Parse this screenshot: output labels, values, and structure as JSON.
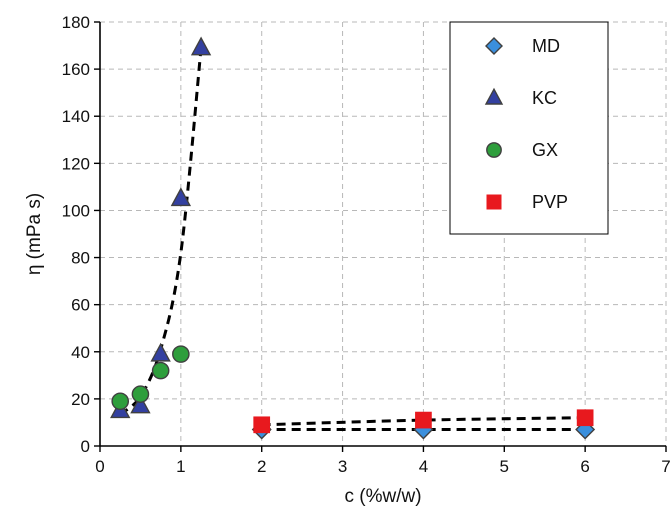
{
  "chart_data": {
    "type": "scatter",
    "title": "",
    "xlabel": "c (%w/w)",
    "ylabel": "η (mPa s)",
    "xlim": [
      0,
      7
    ],
    "ylim": [
      0,
      180
    ],
    "xticks": [
      0,
      1,
      2,
      3,
      4,
      5,
      6,
      7
    ],
    "yticks": [
      0,
      20,
      40,
      60,
      80,
      100,
      120,
      140,
      160,
      180
    ],
    "grid": true,
    "legend_position": "top-right",
    "series": [
      {
        "name": "MD",
        "marker": "diamond",
        "color": "#3a8fdd",
        "x": [
          2,
          4,
          6
        ],
        "y": [
          7,
          7,
          7
        ],
        "trend": "dashed line"
      },
      {
        "name": "KC",
        "marker": "triangle",
        "color": "#3340a0",
        "x": [
          0.25,
          0.5,
          0.75,
          1.0,
          1.25
        ],
        "y": [
          15,
          17,
          39,
          105,
          169
        ],
        "trend": "dashed curve"
      },
      {
        "name": "GX",
        "marker": "circle",
        "color": "#2e9e3c",
        "x": [
          0.25,
          0.5,
          0.75,
          1.0
        ],
        "y": [
          19,
          22,
          32,
          39
        ],
        "trend": "none"
      },
      {
        "name": "PVP",
        "marker": "square",
        "color": "#e8191e",
        "x": [
          2,
          4,
          6
        ],
        "y": [
          9,
          11,
          12
        ],
        "trend": "dashed line"
      }
    ],
    "fits": [
      {
        "name": "KC",
        "x": [
          0.25,
          0.5,
          0.75,
          1.0,
          1.25
        ],
        "y": [
          13.5,
          21,
          41,
          82,
          169
        ]
      },
      {
        "name": "PVP",
        "x": [
          2,
          4,
          6
        ],
        "y": [
          9,
          11,
          12
        ]
      },
      {
        "name": "MD",
        "x": [
          2,
          4,
          6
        ],
        "y": [
          7,
          7,
          7
        ]
      }
    ]
  }
}
